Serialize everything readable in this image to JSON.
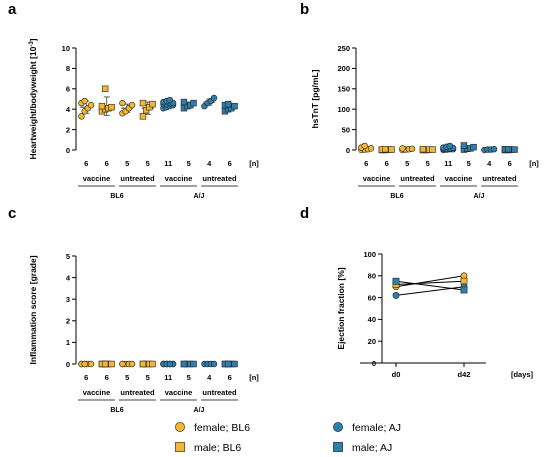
{
  "colors": {
    "BL6": "#f2b632",
    "AJ": "#2f7fae",
    "axis": "#000000"
  },
  "legend": {
    "items": [
      {
        "label": "female; BL6",
        "shape": "circle",
        "color_key": "BL6"
      },
      {
        "label": "male; BL6",
        "shape": "square",
        "color_key": "BL6"
      },
      {
        "label": "female; AJ",
        "shape": "circle",
        "color_key": "AJ"
      },
      {
        "label": "male; AJ",
        "shape": "square",
        "color_key": "AJ"
      }
    ]
  },
  "chart_data": [
    {
      "id": "a",
      "panel_label": "a",
      "type": "scatter",
      "ylabel": "Heartweight/bodyweight [10",
      "ylabel_sup": "-3",
      "ylabel_end": "]",
      "ylim": [
        0,
        10
      ],
      "yticks": [
        0,
        2,
        4,
        6,
        8,
        10
      ],
      "n_unit": "[n]",
      "groups": [
        {
          "n": "6",
          "strain": "BL6",
          "shape": "circle",
          "mean": 4.2,
          "sd": 0.6,
          "points": [
            3.3,
            3.8,
            4.1,
            4.4,
            4.6,
            4.8
          ]
        },
        {
          "n": "6",
          "strain": "BL6",
          "shape": "square",
          "mean": 4.3,
          "sd": 0.9,
          "points": [
            3.8,
            4.0,
            4.1,
            4.2,
            4.3,
            6.0
          ]
        },
        {
          "n": "5",
          "strain": "BL6",
          "shape": "circle",
          "mean": 4.1,
          "sd": 0.4,
          "points": [
            3.6,
            3.8,
            4.1,
            4.4,
            4.6
          ]
        },
        {
          "n": "5",
          "strain": "BL6",
          "shape": "square",
          "mean": 4.1,
          "sd": 0.6,
          "points": [
            3.3,
            3.9,
            4.2,
            4.5,
            4.6
          ]
        },
        {
          "n": "11",
          "strain": "AJ",
          "shape": "circle",
          "mean": 4.5,
          "sd": 0.3,
          "points": [
            4.1,
            4.2,
            4.3,
            4.4,
            4.5,
            4.5,
            4.6,
            4.6,
            4.7,
            4.8,
            4.9
          ]
        },
        {
          "n": "5",
          "strain": "AJ",
          "shape": "square",
          "mean": 4.4,
          "sd": 0.3,
          "points": [
            4.1,
            4.3,
            4.4,
            4.6,
            4.7
          ]
        },
        {
          "n": "4",
          "strain": "AJ",
          "shape": "circle",
          "mean": 4.7,
          "sd": 0.3,
          "points": [
            4.3,
            4.6,
            4.8,
            5.1
          ]
        },
        {
          "n": "6",
          "strain": "AJ",
          "shape": "square",
          "mean": 4.2,
          "sd": 0.3,
          "points": [
            3.8,
            4.0,
            4.1,
            4.3,
            4.4,
            4.5
          ]
        }
      ],
      "group_labels": [
        {
          "label": "vaccine",
          "from": 0,
          "to": 1
        },
        {
          "label": "untreated",
          "from": 2,
          "to": 3
        },
        {
          "label": "vaccine",
          "from": 4,
          "to": 5
        },
        {
          "label": "untreated",
          "from": 6,
          "to": 7
        }
      ],
      "strain_labels": [
        {
          "label": "BL6",
          "from": 0,
          "to": 3
        },
        {
          "label": "A/J",
          "from": 4,
          "to": 7
        }
      ]
    },
    {
      "id": "b",
      "panel_label": "b",
      "type": "scatter",
      "ylabel": "hsTnT [pg/mL]",
      "ylim": [
        0,
        250
      ],
      "yticks": [
        0,
        50,
        100,
        150,
        200,
        250
      ],
      "n_unit": "[n]",
      "groups": [
        {
          "n": "6",
          "strain": "BL6",
          "shape": "circle",
          "mean": 4,
          "sd": 3,
          "points": [
            0,
            1,
            2,
            4,
            6,
            10
          ]
        },
        {
          "n": "6",
          "strain": "BL6",
          "shape": "square",
          "mean": 1,
          "sd": 1,
          "points": [
            0,
            0,
            1,
            1,
            1,
            2
          ]
        },
        {
          "n": "5",
          "strain": "BL6",
          "shape": "circle",
          "mean": 2,
          "sd": 1,
          "points": [
            0,
            1,
            2,
            3,
            4
          ]
        },
        {
          "n": "5",
          "strain": "BL6",
          "shape": "square",
          "mean": 1,
          "sd": 1,
          "points": [
            0,
            0,
            1,
            1,
            2
          ]
        },
        {
          "n": "11",
          "strain": "AJ",
          "shape": "circle",
          "mean": 4,
          "sd": 3,
          "points": [
            0,
            1,
            2,
            2,
            3,
            4,
            4,
            5,
            6,
            8,
            10
          ]
        },
        {
          "n": "5",
          "strain": "AJ",
          "shape": "square",
          "mean": 5,
          "sd": 4,
          "points": [
            1,
            3,
            4,
            7,
            11
          ]
        },
        {
          "n": "4",
          "strain": "AJ",
          "shape": "circle",
          "mean": 1,
          "sd": 1,
          "points": [
            0,
            1,
            1,
            2
          ]
        },
        {
          "n": "6",
          "strain": "AJ",
          "shape": "square",
          "mean": 1,
          "sd": 1,
          "points": [
            0,
            0,
            1,
            1,
            2,
            2
          ]
        }
      ],
      "group_labels": [
        {
          "label": "vaccine",
          "from": 0,
          "to": 1
        },
        {
          "label": "untreated",
          "from": 2,
          "to": 3
        },
        {
          "label": "vaccine",
          "from": 4,
          "to": 5
        },
        {
          "label": "untreated",
          "from": 6,
          "to": 7
        }
      ],
      "strain_labels": [
        {
          "label": "BL6",
          "from": 0,
          "to": 3
        },
        {
          "label": "A/J",
          "from": 4,
          "to": 7
        }
      ]
    },
    {
      "id": "c",
      "panel_label": "c",
      "type": "scatter",
      "ylabel": "Inflammation score [grade]",
      "ylim": [
        0,
        5
      ],
      "yticks": [
        0,
        1,
        2,
        3,
        4,
        5
      ],
      "n_unit": "[n]",
      "groups": [
        {
          "n": "6",
          "strain": "BL6",
          "shape": "circle",
          "mean": 0,
          "sd": 0,
          "points": [
            0,
            0,
            0,
            0,
            0,
            0
          ]
        },
        {
          "n": "6",
          "strain": "BL6",
          "shape": "square",
          "mean": 0,
          "sd": 0,
          "points": [
            0,
            0,
            0,
            0,
            0,
            0
          ]
        },
        {
          "n": "5",
          "strain": "BL6",
          "shape": "circle",
          "mean": 0,
          "sd": 0,
          "points": [
            0,
            0,
            0,
            0,
            0
          ]
        },
        {
          "n": "5",
          "strain": "BL6",
          "shape": "square",
          "mean": 0,
          "sd": 0,
          "points": [
            0,
            0,
            0,
            0,
            0
          ]
        },
        {
          "n": "11",
          "strain": "AJ",
          "shape": "circle",
          "mean": 0,
          "sd": 0,
          "points": [
            0,
            0,
            0,
            0,
            0,
            0,
            0,
            0,
            0,
            0,
            0
          ]
        },
        {
          "n": "5",
          "strain": "AJ",
          "shape": "square",
          "mean": 0,
          "sd": 0,
          "points": [
            0,
            0,
            0,
            0,
            0
          ]
        },
        {
          "n": "4",
          "strain": "AJ",
          "shape": "circle",
          "mean": 0,
          "sd": 0,
          "points": [
            0,
            0,
            0,
            0
          ]
        },
        {
          "n": "6",
          "strain": "AJ",
          "shape": "square",
          "mean": 0,
          "sd": 0,
          "points": [
            0,
            0,
            0,
            0,
            0,
            0
          ]
        }
      ],
      "group_labels": [
        {
          "label": "vaccine",
          "from": 0,
          "to": 1
        },
        {
          "label": "untreated",
          "from": 2,
          "to": 3
        },
        {
          "label": "vaccine",
          "from": 4,
          "to": 5
        },
        {
          "label": "untreated",
          "from": 6,
          "to": 7
        }
      ],
      "strain_labels": [
        {
          "label": "BL6",
          "from": 0,
          "to": 3
        },
        {
          "label": "A/J",
          "from": 4,
          "to": 7
        }
      ]
    },
    {
      "id": "d",
      "panel_label": "d",
      "type": "line",
      "ylabel": "Ejection fraction [%]",
      "ylim": [
        0,
        100
      ],
      "yticks": [
        0,
        20,
        40,
        60,
        80,
        100
      ],
      "x": [
        "d0",
        "d42"
      ],
      "x_unit": "[days]",
      "series": [
        {
          "strain": "BL6",
          "shape": "circle",
          "values": [
            70,
            80
          ]
        },
        {
          "strain": "BL6",
          "shape": "square",
          "values": [
            72,
            75
          ]
        },
        {
          "strain": "AJ",
          "shape": "circle",
          "values": [
            62,
            70
          ]
        },
        {
          "strain": "AJ",
          "shape": "square",
          "values": [
            75,
            67
          ]
        }
      ]
    }
  ]
}
